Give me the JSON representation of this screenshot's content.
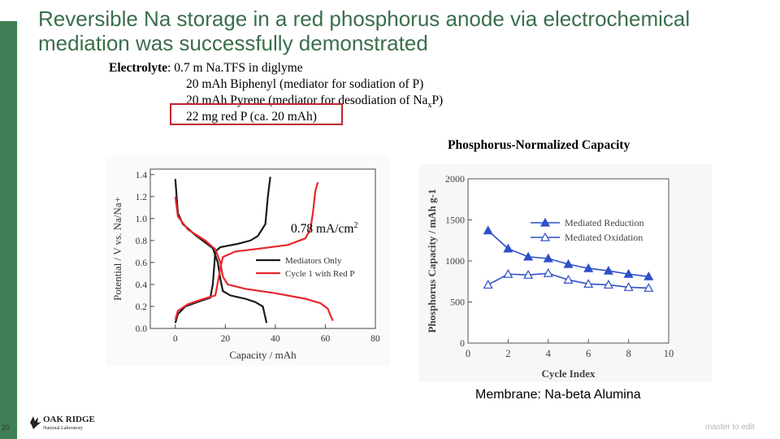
{
  "slide": {
    "title": "Reversible Na storage in a red phosphorus anode via electrochemical mediation was successfully demonstrated",
    "page_number": "20",
    "footer_text": "master to edit",
    "accent_color": "#3f7f55",
    "title_color": "#3a6e4b"
  },
  "electrolyte": {
    "label": "Electrolyte",
    "sep": ":",
    "line1": "0.7 m Na.TFS in diglyme",
    "line2": "20 mAh Biphenyl (mediator for sodiation of P)",
    "line3_pre": "20 mAh Pyrene (mediator for desodiation of Na",
    "line3_sub": "x",
    "line3_post": "P)",
    "line4": "22 mg red P (ca. 20 mAh)"
  },
  "phosphorus_caption": "Phosphorus-Normalized Capacity",
  "rate": {
    "value": "0.78 mA/cm",
    "sup": "2"
  },
  "membrane": "Membrane: Na-beta Alumina",
  "logo": {
    "line1": "OAK RIDGE",
    "line2": "National Laboratory"
  },
  "chart_data": [
    {
      "type": "line",
      "xlabel": "Capacity / mAh",
      "ylabel": "Potential / V vs. Na/Na+",
      "xlim": [
        -10,
        80
      ],
      "ylim": [
        0.0,
        1.45
      ],
      "xticks": [
        "0",
        "20",
        "40",
        "60",
        "80"
      ],
      "yticks": [
        "0.0",
        "0.2",
        "0.4",
        "0.6",
        "0.8",
        "1.0",
        "1.2",
        "1.4"
      ],
      "legend_position": "center-right",
      "series": [
        {
          "name": "Mediators Only",
          "color": "#1a1a1a",
          "segments": [
            [
              [
                0,
                1.36
              ],
              [
                1,
                1.05
              ],
              [
                3,
                0.95
              ],
              [
                8,
                0.85
              ],
              [
                15,
                0.73
              ],
              [
                17,
                0.6
              ],
              [
                18,
                0.45
              ],
              [
                19,
                0.34
              ],
              [
                22,
                0.3
              ],
              [
                28,
                0.27
              ],
              [
                32,
                0.24
              ],
              [
                35,
                0.2
              ],
              [
                36,
                0.1
              ],
              [
                36.5,
                0.05
              ]
            ],
            [
              [
                0,
                0.05
              ],
              [
                1,
                0.13
              ],
              [
                4,
                0.2
              ],
              [
                10,
                0.25
              ],
              [
                14,
                0.28
              ],
              [
                15,
                0.4
              ],
              [
                15.5,
                0.55
              ],
              [
                16,
                0.7
              ],
              [
                18,
                0.74
              ],
              [
                25,
                0.77
              ],
              [
                30,
                0.8
              ],
              [
                33,
                0.84
              ],
              [
                36,
                0.95
              ],
              [
                37,
                1.2
              ],
              [
                38,
                1.38
              ]
            ]
          ]
        },
        {
          "name": "Cycle 1 with Red P",
          "color": "#e8262c",
          "segments": [
            [
              [
                0,
                1.2
              ],
              [
                1,
                1.02
              ],
              [
                5,
                0.9
              ],
              [
                12,
                0.8
              ],
              [
                16,
                0.72
              ],
              [
                18,
                0.6
              ],
              [
                19,
                0.47
              ],
              [
                21,
                0.4
              ],
              [
                28,
                0.36
              ],
              [
                40,
                0.32
              ],
              [
                52,
                0.27
              ],
              [
                58,
                0.23
              ],
              [
                61,
                0.18
              ],
              [
                62,
                0.12
              ],
              [
                63,
                0.07
              ]
            ],
            [
              [
                0,
                0.08
              ],
              [
                1,
                0.16
              ],
              [
                5,
                0.22
              ],
              [
                10,
                0.26
              ],
              [
                16,
                0.3
              ],
              [
                17,
                0.42
              ],
              [
                18,
                0.55
              ],
              [
                19,
                0.65
              ],
              [
                24,
                0.7
              ],
              [
                35,
                0.73
              ],
              [
                45,
                0.76
              ],
              [
                52,
                0.82
              ],
              [
                54,
                0.9
              ],
              [
                55,
                1.05
              ],
              [
                56,
                1.25
              ],
              [
                57,
                1.33
              ]
            ]
          ]
        }
      ]
    },
    {
      "type": "line",
      "xlabel": "Cycle Index",
      "ylabel": "Phosphorus Capacity / mAh g-1",
      "xlim": [
        0,
        10
      ],
      "ylim": [
        0,
        2000
      ],
      "xticks": [
        "0",
        "2",
        "4",
        "6",
        "8",
        "10"
      ],
      "yticks": [
        "0",
        "500",
        "1000",
        "1500",
        "2000"
      ],
      "legend_position": "top-right",
      "x": [
        1,
        2,
        3,
        4,
        5,
        6,
        7,
        8,
        9
      ],
      "series": [
        {
          "name": "Mediated Reduction",
          "color": "#2f4fc8",
          "marker": "filled-triangle",
          "values": [
            1370,
            1150,
            1050,
            1030,
            960,
            910,
            880,
            840,
            810
          ]
        },
        {
          "name": "Mediated Oxidation",
          "color": "#2f4fc8",
          "marker": "open-triangle",
          "values": [
            710,
            840,
            830,
            850,
            770,
            720,
            710,
            680,
            670
          ]
        }
      ]
    }
  ]
}
